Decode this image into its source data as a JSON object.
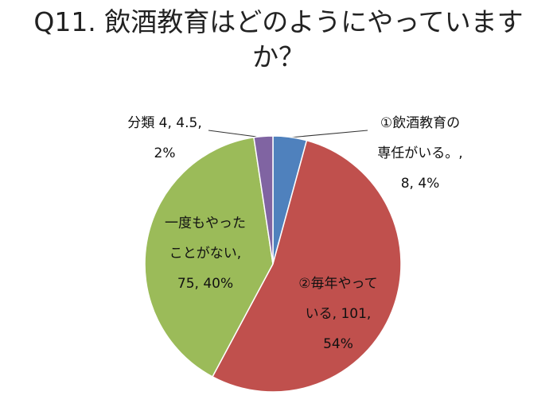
{
  "chart_data": {
    "type": "pie",
    "title": "Q11. 飲酒教育はどのようにやっていますか？",
    "values": [
      8,
      101,
      75,
      4.5
    ],
    "colors": [
      "#4f81bd",
      "#c0504d",
      "#9bbb59",
      "#8064a2"
    ],
    "data_labels": [
      [
        "①飲酒教育の",
        "専任がいる。,",
        "8, 4%"
      ],
      [
        "②毎年やって",
        "いる, 101,",
        "54%"
      ],
      [
        "一度もやった",
        "ことがない,",
        "75, 40%"
      ],
      [
        "分類 4, 4.5,",
        "2%"
      ]
    ]
  }
}
